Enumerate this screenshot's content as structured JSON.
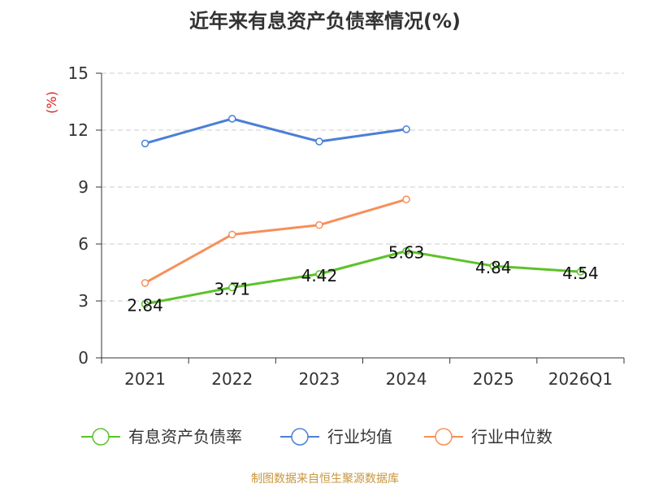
{
  "chart_data": {
    "type": "line",
    "title": "近年来有息资产负债率情况(%)",
    "ylabel": "(%)",
    "xlabel": "",
    "ylim": [
      0,
      15
    ],
    "yticks": [
      "0",
      "3",
      "6",
      "9",
      "12",
      "15"
    ],
    "categories": [
      "2021",
      "2022",
      "2023",
      "2024",
      "2025",
      "2026Q1"
    ],
    "grid": true,
    "legend_position": "bottom",
    "series": [
      {
        "name": "有息资产负债率",
        "color": "#5cc22a",
        "values": [
          2.84,
          3.71,
          4.42,
          5.63,
          4.84,
          4.54
        ],
        "labels": [
          "2.84",
          "3.71",
          "4.42",
          "5.63",
          "4.84",
          "4.54"
        ]
      },
      {
        "name": "行业均值",
        "color": "#4b7fd6",
        "values": [
          11.3,
          12.6,
          11.4,
          12.05,
          null,
          null
        ]
      },
      {
        "name": "行业中位数",
        "color": "#f78f5a",
        "values": [
          3.95,
          6.5,
          7.0,
          8.35,
          null,
          null
        ]
      }
    ]
  },
  "source": "制图数据来自恒生聚源数据库",
  "colors": {
    "axis": "#333333",
    "grid": "#cccccc",
    "ylabel": "#e02020",
    "source": "#c8963e"
  }
}
